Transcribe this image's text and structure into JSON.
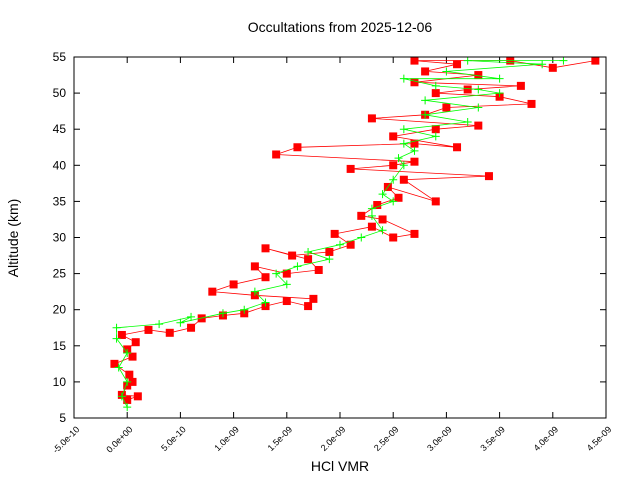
{
  "chart_data": {
    "type": "line",
    "title": "Occultations from 2025-12-06",
    "xlabel": "HCl VMR",
    "ylabel": "Altitude (km)",
    "xlim": [
      -5e-10,
      4.5e-09
    ],
    "ylim": [
      5,
      55
    ],
    "xticks": [
      "-5.0e-10",
      "0.0e+00",
      "5.0e-10",
      "1.0e-09",
      "1.5e-09",
      "2.0e-09",
      "2.5e-09",
      "3.0e-09",
      "3.5e-09",
      "4.0e-09",
      "4.5e-09"
    ],
    "yticks": [
      "5",
      "10",
      "15",
      "20",
      "25",
      "30",
      "35",
      "40",
      "45",
      "50",
      "55"
    ],
    "grid": false,
    "series": [
      {
        "color": "#ff0000",
        "marker": "square",
        "points": [
          [
            0.0,
            7.5
          ],
          [
            1e-10,
            8
          ],
          [
            -5e-11,
            8.2
          ],
          [
            0.0,
            9.5
          ],
          [
            5e-11,
            10
          ],
          [
            2e-11,
            11
          ],
          [
            -1.2e-10,
            12.5
          ],
          [
            5e-11,
            13.5
          ],
          [
            0.0,
            14.5
          ],
          [
            8e-11,
            15.5
          ],
          [
            -5e-11,
            16.5
          ],
          [
            2e-10,
            17.2
          ],
          [
            4e-10,
            16.8
          ],
          [
            6e-10,
            17.5
          ],
          [
            7e-10,
            18.8
          ],
          [
            9e-10,
            19.2
          ],
          [
            1.1e-09,
            19.5
          ],
          [
            1.3e-09,
            20.5
          ],
          [
            1.5e-09,
            21.2
          ],
          [
            1.7e-09,
            20.5
          ],
          [
            1.75e-09,
            21.5
          ],
          [
            1.2e-09,
            22
          ],
          [
            8e-10,
            22.5
          ],
          [
            1e-09,
            23.5
          ],
          [
            1.3e-09,
            24.5
          ],
          [
            1.2e-09,
            26
          ],
          [
            1.5e-09,
            25
          ],
          [
            1.8e-09,
            25.5
          ],
          [
            1.7e-09,
            27
          ],
          [
            1.3e-09,
            28.5
          ],
          [
            1.55e-09,
            27.5
          ],
          [
            1.9e-09,
            28
          ],
          [
            2.1e-09,
            29
          ],
          [
            1.95e-09,
            30.5
          ],
          [
            2.3e-09,
            31.5
          ],
          [
            2.5e-09,
            30
          ],
          [
            2.7e-09,
            30.5
          ],
          [
            2.4e-09,
            32.5
          ],
          [
            2.2e-09,
            33
          ],
          [
            2.35e-09,
            34.5
          ],
          [
            2.55e-09,
            35.5
          ],
          [
            2.45e-09,
            37
          ],
          [
            2.9e-09,
            35
          ],
          [
            2.6e-09,
            38
          ],
          [
            3.4e-09,
            38.5
          ],
          [
            2.1e-09,
            39.5
          ],
          [
            2.5e-09,
            40
          ],
          [
            2.7e-09,
            40.5
          ],
          [
            1.4e-09,
            41.5
          ],
          [
            1.6e-09,
            42.5
          ],
          [
            2.7e-09,
            43
          ],
          [
            3.1e-09,
            42.5
          ],
          [
            2.5e-09,
            44
          ],
          [
            2.9e-09,
            45
          ],
          [
            3.3e-09,
            45.5
          ],
          [
            2.3e-09,
            46.5
          ],
          [
            2.8e-09,
            47
          ],
          [
            3e-09,
            48
          ],
          [
            3.8e-09,
            48.5
          ],
          [
            3.5e-09,
            49.5
          ],
          [
            2.9e-09,
            50
          ],
          [
            3.2e-09,
            50.5
          ],
          [
            3.7e-09,
            51
          ],
          [
            2.7e-09,
            51.5
          ],
          [
            3.3e-09,
            52.5
          ],
          [
            2.8e-09,
            53
          ],
          [
            3.1e-09,
            54
          ],
          [
            2.7e-09,
            54.5
          ],
          [
            3.6e-09,
            54.5
          ],
          [
            4e-09,
            53.5
          ],
          [
            4.4e-09,
            54.5
          ]
        ]
      },
      {
        "color": "#00ff00",
        "marker": "plus",
        "points": [
          [
            0.0,
            6.5
          ],
          [
            -5e-11,
            8
          ],
          [
            0.0,
            10
          ],
          [
            -8e-11,
            12
          ],
          [
            0.0,
            14
          ],
          [
            -1e-10,
            16
          ],
          [
            -1e-10,
            17.5
          ],
          [
            3e-10,
            18
          ],
          [
            6e-10,
            19
          ],
          [
            5e-10,
            18.2
          ],
          [
            9e-10,
            19.5
          ],
          [
            1.1e-09,
            20
          ],
          [
            1.3e-09,
            21
          ],
          [
            1.2e-09,
            22.5
          ],
          [
            1.5e-09,
            23.5
          ],
          [
            1.4e-09,
            25
          ],
          [
            1.6e-09,
            26
          ],
          [
            1.9e-09,
            27
          ],
          [
            1.7e-09,
            28
          ],
          [
            2e-09,
            29
          ],
          [
            2.2e-09,
            30
          ],
          [
            2.4e-09,
            31
          ],
          [
            2.3e-09,
            33
          ],
          [
            2.3e-09,
            34
          ],
          [
            2.5e-09,
            35
          ],
          [
            2.4e-09,
            36
          ],
          [
            2.5e-09,
            38
          ],
          [
            2.6e-09,
            40
          ],
          [
            2.55e-09,
            41
          ],
          [
            2.7e-09,
            42
          ],
          [
            2.6e-09,
            43
          ],
          [
            2.9e-09,
            44
          ],
          [
            2.6e-09,
            45
          ],
          [
            3.2e-09,
            46
          ],
          [
            2.8e-09,
            47
          ],
          [
            3.3e-09,
            48
          ],
          [
            2.8e-09,
            49
          ],
          [
            3.5e-09,
            50
          ],
          [
            3.3e-09,
            50.5
          ],
          [
            2.9e-09,
            51
          ],
          [
            2.6e-09,
            52
          ],
          [
            3.5e-09,
            52
          ],
          [
            3e-09,
            53
          ],
          [
            3.9e-09,
            54
          ],
          [
            3.2e-09,
            54.5
          ],
          [
            4.1e-09,
            54.5
          ]
        ]
      }
    ]
  }
}
